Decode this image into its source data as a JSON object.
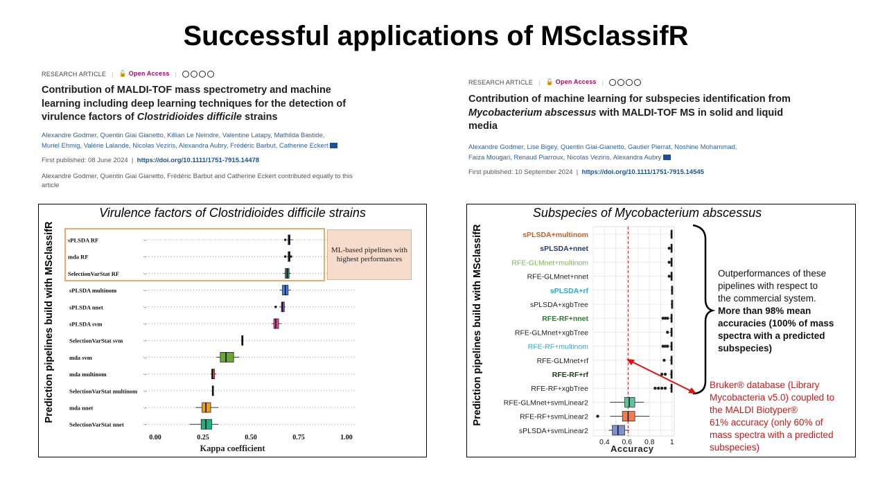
{
  "slide_title": "Successful applications of MSclassifR",
  "paper_left": {
    "type": "RESEARCH ARTICLE",
    "access": "Open Access",
    "title_pre": "Contribution of MALDI-TOF mass spectrometry and machine learning including deep learning techniques for the detection of virulence factors of ",
    "title_italic": "Clostridioides difficile",
    "title_post": " strains",
    "authors_line1": "Alexandre Godmer, Quentin Giai Gianetto, Killian Le Neindre, Valentine Latapy, Mathilda Bastide,",
    "authors_line2": "Muriel Ehmig, Valérie Lalande, Nicolas Veziris, Alexandra Aubry, Frédéric Barbut, Catherine Eckert",
    "published_label": "First published: 08 June 2024",
    "doi": "https://doi.org/10.1111/1751-7915.14478",
    "note": "Alexandre Godmer, Quentin Giai Gianetto, Frédéric Barbut and Catherine Eckert contributed equally to this article"
  },
  "paper_right": {
    "type": "RESEARCH ARTICLE",
    "access": "Open Access",
    "title_pre": "Contribution of machine learning for subspecies identification from ",
    "title_italic": "Mycobacterium abscessus",
    "title_post": " with MALDI-TOF MS in solid and liquid media",
    "authors_line1": "Alexandre Godmer, Lise Bigey, Quentin Giai-Gianetto, Gautier Pierrat, Noshine Mohammad,",
    "authors_line2": "Faiza Mougari, Renaud Piarroux, Nicolas Veziris, Alexandra Aubry",
    "published_label": "First published: 10 September 2024",
    "doi": "https://doi.org/10.1111/1751-7915.14545"
  },
  "chart_left": {
    "title": "Virulence factors of Clostridioides difficile strains",
    "ylabel": "Prediction pipelines build with MSclassifR",
    "xlabel": "Kappa coefficient",
    "highlight_label": "ML-based pipelines with highest performances"
  },
  "chart_right": {
    "title": "Subspecies of Mycobacterium abscessus",
    "ylabel": "Prediction pipelines build with MSclassifR",
    "xlabel": "Accuracy"
  },
  "annotation_black": {
    "line1": "Outperformances of these",
    "line2": "pipelines with respect to",
    "line3": "the commercial system.",
    "bold1": "More than 98% mean",
    "bold2": "accuracies (100% of mass",
    "bold3": "spectra with a predicted",
    "bold4": "subspecies)"
  },
  "annotation_red": {
    "line1": "Bruker® database (Library",
    "line2": "Mycobacteria v5.0) coupled to",
    "line3": "the MALDI Biotyper®",
    "line4": "61% accuracy (only 60% of",
    "line5": "mass spectra with a predicted",
    "line6": "subspecies)"
  },
  "colors": {
    "highlight_border": "#f0a868",
    "highlight_fill": "#f7dccb",
    "red": "#e01010",
    "orange_label": "#d2591e",
    "navy_label": "#1f3b73",
    "green_label": "#7ab648",
    "cyan_label": "#2aa8d8",
    "darkgreen_label": "#2e7d32"
  },
  "chart_data": [
    {
      "type": "boxplot",
      "title": "Virulence factors of Clostridioides difficile strains",
      "xlabel": "Kappa coefficient",
      "ylabel": "Prediction pipelines build with MSclassifR",
      "xlim": [
        0,
        1
      ],
      "xticks": [
        "0.00",
        "0.25",
        "0.50",
        "0.75",
        "1.00"
      ],
      "categories": [
        "sPLSDA RF",
        "mda RF",
        "SelectionVarStat RF",
        "sPLSDA multinom",
        "sPLSDA nnet",
        "sPLSDA svm",
        "SelectionVarStat svm",
        "mda svm",
        "mda multinom",
        "SelectionVarStat multinom",
        "mda nnet",
        "SelectionVarStat nnet"
      ],
      "series": [
        {
          "min": 0.69,
          "q1": 0.695,
          "median": 0.7,
          "q3": 0.705,
          "max": 0.72,
          "color": "#8a5a9a",
          "outliers": [
            0.68
          ]
        },
        {
          "min": 0.69,
          "q1": 0.695,
          "median": 0.7,
          "q3": 0.705,
          "max": 0.71,
          "color": "#8a5a9a",
          "outliers": [
            0.68,
            0.71
          ]
        },
        {
          "min": 0.67,
          "q1": 0.68,
          "median": 0.69,
          "q3": 0.7,
          "max": 0.71,
          "color": "#2e8b57",
          "outliers": []
        },
        {
          "min": 0.65,
          "q1": 0.665,
          "median": 0.68,
          "q3": 0.695,
          "max": 0.71,
          "color": "#4a80d8",
          "outliers": []
        },
        {
          "min": 0.65,
          "q1": 0.66,
          "median": 0.665,
          "q3": 0.675,
          "max": 0.68,
          "color": "#8a5ac8",
          "outliers": [
            0.63
          ]
        },
        {
          "min": 0.61,
          "q1": 0.62,
          "median": 0.63,
          "q3": 0.645,
          "max": 0.66,
          "color": "#e04a9a",
          "outliers": []
        },
        {
          "min": 0.45,
          "q1": 0.452,
          "median": 0.455,
          "q3": 0.458,
          "max": 0.46,
          "color": "#222222",
          "outliers": []
        },
        {
          "min": 0.32,
          "q1": 0.34,
          "median": 0.37,
          "q3": 0.41,
          "max": 0.44,
          "color": "#6aa82a",
          "outliers": []
        },
        {
          "min": 0.29,
          "q1": 0.295,
          "median": 0.3,
          "q3": 0.31,
          "max": 0.32,
          "color": "#e06050",
          "outliers": []
        },
        {
          "min": 0.295,
          "q1": 0.298,
          "median": 0.3,
          "q3": 0.303,
          "max": 0.305,
          "color": "#2e8b57",
          "outliers": []
        },
        {
          "min": 0.21,
          "q1": 0.245,
          "median": 0.265,
          "q3": 0.29,
          "max": 0.33,
          "color": "#e8a020",
          "outliers": []
        },
        {
          "min": 0.18,
          "q1": 0.24,
          "median": 0.265,
          "q3": 0.295,
          "max": 0.33,
          "color": "#20b080",
          "outliers": []
        }
      ]
    },
    {
      "type": "boxplot",
      "title": "Subspecies of Mycobacterium abscessus",
      "xlabel": "Accuracy",
      "ylabel": "Prediction pipelines build with MSclassifR",
      "xlim": [
        0.3,
        1.02
      ],
      "xticks": [
        "0.4",
        "0.6",
        "0.8",
        "1"
      ],
      "reference_line": 0.61,
      "categories": [
        "sPLSDA+multinom",
        "sPLSDA+nnet",
        "RFE-GLMnet+multinom",
        "RFE-GLMnet+nnet",
        "sPLSDA+rf",
        "sPLSDA+xgbTree",
        "RFE-RF+nnet",
        "RFE-GLMnet+xgbTree",
        "RFE-RF+multinom",
        "RFE-GLMnet+rf",
        "RFE-RF+rf",
        "RFE-RF+xgbTree",
        "RFE-GLMnet+svmLinear2",
        "RFE-RF+svmLinear2",
        "sPLSDA+svmLinear2"
      ],
      "series": [
        {
          "min": 0.985,
          "q1": 0.99,
          "median": 0.995,
          "q3": 1.0,
          "max": 1.0,
          "color": "#333333",
          "outliers": []
        },
        {
          "min": 0.98,
          "q1": 0.99,
          "median": 0.995,
          "q3": 1.0,
          "max": 1.0,
          "color": "#333333",
          "outliers": [
            0.975
          ]
        },
        {
          "min": 0.98,
          "q1": 0.99,
          "median": 0.995,
          "q3": 1.0,
          "max": 1.0,
          "color": "#333333",
          "outliers": [
            0.975
          ]
        },
        {
          "min": 0.98,
          "q1": 0.99,
          "median": 0.995,
          "q3": 1.0,
          "max": 1.0,
          "color": "#333333",
          "outliers": [
            0.975
          ]
        },
        {
          "min": 0.99,
          "q1": 0.995,
          "median": 0.998,
          "q3": 1.0,
          "max": 1.0,
          "color": "#333333",
          "outliers": []
        },
        {
          "min": 0.99,
          "q1": 0.995,
          "median": 0.998,
          "q3": 1.0,
          "max": 1.0,
          "color": "#333333",
          "outliers": []
        },
        {
          "min": 0.98,
          "q1": 0.99,
          "median": 0.995,
          "q3": 1.0,
          "max": 1.0,
          "color": "#333333",
          "outliers": [
            0.92,
            0.94,
            0.96
          ]
        },
        {
          "min": 0.98,
          "q1": 0.99,
          "median": 0.995,
          "q3": 1.0,
          "max": 1.0,
          "color": "#333333",
          "outliers": [
            0.96
          ]
        },
        {
          "min": 0.98,
          "q1": 0.99,
          "median": 0.995,
          "q3": 1.0,
          "max": 1.0,
          "color": "#333333",
          "outliers": [
            0.92,
            0.94,
            0.96
          ]
        },
        {
          "min": 0.98,
          "q1": 0.99,
          "median": 0.995,
          "q3": 1.0,
          "max": 1.0,
          "color": "#333333",
          "outliers": [
            0.93
          ]
        },
        {
          "min": 0.98,
          "q1": 0.99,
          "median": 0.995,
          "q3": 1.0,
          "max": 1.0,
          "color": "#333333",
          "outliers": [
            0.91,
            0.94
          ]
        },
        {
          "min": 0.98,
          "q1": 0.99,
          "median": 0.995,
          "q3": 1.0,
          "max": 1.0,
          "color": "#333333",
          "outliers": [
            0.85,
            0.88,
            0.91,
            0.94
          ]
        },
        {
          "min": 0.45,
          "q1": 0.58,
          "median": 0.62,
          "q3": 0.67,
          "max": 0.75,
          "color": "#5cc29a",
          "outliers": []
        },
        {
          "min": 0.45,
          "q1": 0.56,
          "median": 0.61,
          "q3": 0.67,
          "max": 0.8,
          "color": "#f47c50",
          "outliers": [
            0.34
          ]
        },
        {
          "min": 0.44,
          "q1": 0.47,
          "median": 0.52,
          "q3": 0.58,
          "max": 0.62,
          "color": "#8090c8",
          "outliers": []
        }
      ],
      "label_colors": [
        "#d2591e",
        "#1f3b73",
        "#7ab648",
        "#222222",
        "#2aa8d8",
        "#222222",
        "#2e7d32",
        "#222222",
        "#2aa8d8",
        "#222222",
        "#1e3d1e",
        "#222222",
        "#222222",
        "#222222",
        "#222222"
      ],
      "label_bold": [
        true,
        true,
        false,
        false,
        true,
        false,
        true,
        false,
        false,
        false,
        true,
        false,
        false,
        false,
        false
      ]
    }
  ]
}
